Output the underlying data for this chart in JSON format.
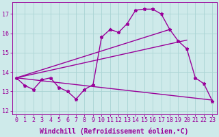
{
  "bg_color": "#ceeaea",
  "line_color": "#990099",
  "grid_color": "#aad4d4",
  "xlabel": "Windchill (Refroidissement éolien,°C)",
  "ylim": [
    11.8,
    17.6
  ],
  "xlim": [
    -0.5,
    23.5
  ],
  "yticks": [
    12,
    13,
    14,
    15,
    16,
    17
  ],
  "ytick_labels": [
    "12",
    "13",
    "14",
    "15",
    "16",
    "17"
  ],
  "xticks": [
    0,
    1,
    2,
    3,
    4,
    5,
    6,
    7,
    8,
    9,
    10,
    11,
    12,
    13,
    14,
    15,
    16,
    17,
    18,
    19,
    20,
    21,
    22,
    23
  ],
  "main_x": [
    0,
    1,
    2,
    3,
    4,
    5,
    6,
    7,
    8,
    9,
    10,
    11,
    12,
    13,
    14,
    15,
    16,
    17,
    18,
    19,
    20,
    21,
    22,
    23
  ],
  "main_y": [
    13.7,
    13.3,
    13.1,
    13.6,
    13.7,
    13.2,
    13.0,
    12.6,
    13.1,
    13.35,
    15.8,
    16.2,
    16.05,
    16.5,
    17.2,
    17.25,
    17.25,
    17.0,
    16.2,
    15.6,
    15.2,
    13.7,
    13.4,
    12.5
  ],
  "line1_x": [
    0,
    23
  ],
  "line1_y": [
    13.7,
    12.55
  ],
  "line2_x": [
    0,
    18
  ],
  "line2_y": [
    13.7,
    16.2
  ],
  "line3_x": [
    0,
    20
  ],
  "line3_y": [
    13.7,
    15.65
  ],
  "line_width": 1.0,
  "marker": "*",
  "marker_size": 3.5,
  "tick_fontsize": 6.0,
  "label_fontsize": 7.0
}
